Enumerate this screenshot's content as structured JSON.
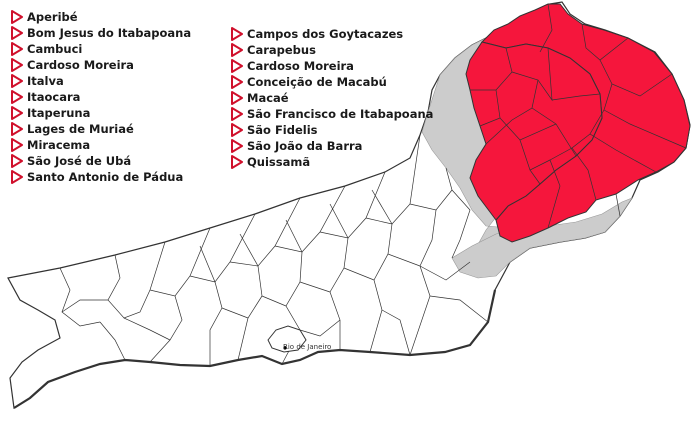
{
  "lists": {
    "left": [
      {
        "label": "Aperibé",
        "icon": "triangle-right-icon"
      },
      {
        "label": "Bom Jesus do Itabapoana",
        "icon": "triangle-right-icon"
      },
      {
        "label": "Cambuci",
        "icon": "triangle-right-icon"
      },
      {
        "label": "Cardoso Moreira",
        "icon": "triangle-right-icon"
      },
      {
        "label": "Italva",
        "icon": "triangle-right-icon"
      },
      {
        "label": "Itaocara",
        "icon": "triangle-right-icon"
      },
      {
        "label": "Itaperuna",
        "icon": "triangle-right-icon"
      },
      {
        "label": "Lages de Muriaé",
        "icon": "triangle-right-icon"
      },
      {
        "label": "Miracema",
        "icon": "triangle-right-icon"
      },
      {
        "label": "São José de Ubá",
        "icon": "triangle-right-icon"
      },
      {
        "label": "Santo Antonio de Pádua",
        "icon": "triangle-right-icon"
      }
    ],
    "right": [
      {
        "label": "Campos dos Goytacazes",
        "icon": "triangle-right-icon"
      },
      {
        "label": "Carapebus",
        "icon": "triangle-right-icon"
      },
      {
        "label": "Cardoso Moreira",
        "icon": "triangle-right-icon"
      },
      {
        "label": "Conceição de Macabú",
        "icon": "triangle-right-icon"
      },
      {
        "label": "Macaé",
        "icon": "triangle-right-icon"
      },
      {
        "label": "São Francisco de Itabapoana",
        "icon": "triangle-right-icon"
      },
      {
        "label": "São Fidelis",
        "icon": "triangle-right-icon"
      },
      {
        "label": "São João da Barra",
        "icon": "triangle-right-icon"
      },
      {
        "label": "Quissamã",
        "icon": "triangle-right-icon"
      }
    ]
  },
  "map": {
    "city_label": "Rio de Janeiro",
    "colors": {
      "highlight": "#f5163c",
      "gray_region": "#cccccc",
      "base": "#ffffff",
      "border": "#333333",
      "icon": "#d0102c"
    }
  }
}
